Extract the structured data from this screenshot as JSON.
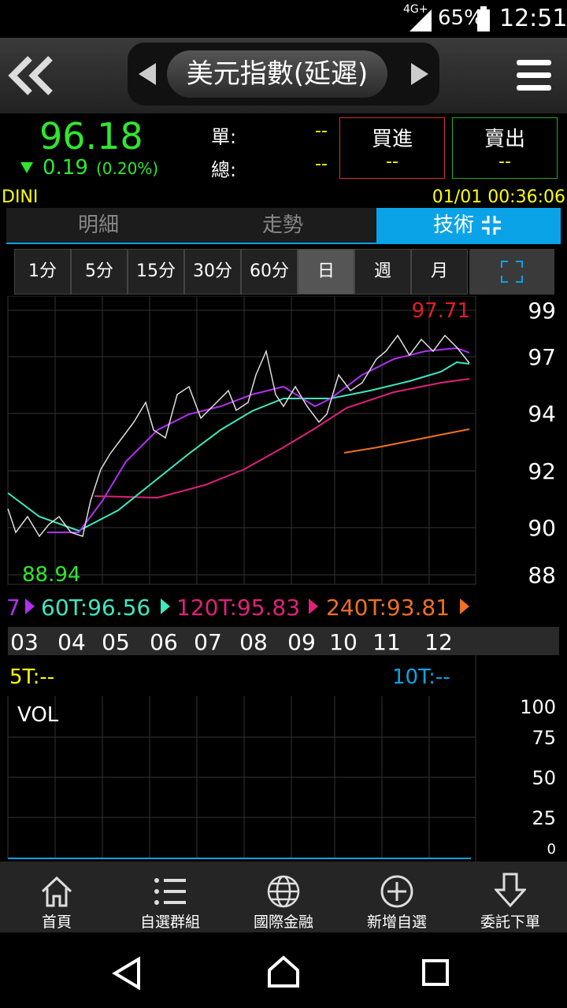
{
  "status_bar": {
    "network": "4G+",
    "battery": "65%",
    "time": "12:51"
  },
  "header": {
    "title": "美元指數(延遲)"
  },
  "quote": {
    "price": "96.18",
    "change": "0.19",
    "change_pct": "(0.20%)",
    "bid_label": "單:",
    "bid_value": "--",
    "total_label": "總:",
    "total_value": "--",
    "buy": {
      "label": "買進",
      "value": "--"
    },
    "sell": {
      "label": "賣出",
      "value": "--"
    }
  },
  "info": {
    "symbol": "DINI",
    "datetime": "01/01 00:36:06"
  },
  "tabs": [
    "明細",
    "走勢",
    "技術"
  ],
  "periods": [
    "1分",
    "5分",
    "15分",
    "30分",
    "60分",
    "日",
    "週",
    "月"
  ],
  "chart": {
    "high_label": "97.71",
    "low_label": "88.94",
    "y_axis": [
      "99",
      "97",
      "94",
      "92",
      "90",
      "88"
    ],
    "ma_legend": [
      "7",
      "60T:96.56",
      "120T:95.83",
      "240T:93.81"
    ],
    "months": [
      "03",
      "04",
      "05",
      "06",
      "07",
      "08",
      "09",
      "10",
      "11",
      "12"
    ]
  },
  "volume": {
    "ma_legend": [
      "5T:--",
      "10T:--"
    ],
    "label": "VOL",
    "y_axis": [
      "100",
      "75",
      "50",
      "25",
      "0"
    ]
  },
  "nav": [
    "首頁",
    "自選群組",
    "國際金融",
    "新增自選",
    "委託下單"
  ]
}
